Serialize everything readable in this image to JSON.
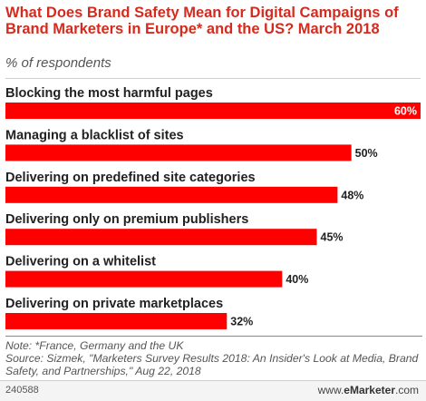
{
  "header": {
    "title": "What Does Brand Safety Mean for Digital Campaigns of Brand Marketers in Europe* and the US? March 2018",
    "subtitle": "% of respondents"
  },
  "chart_data": {
    "type": "bar",
    "orientation": "horizontal",
    "categories": [
      "Blocking the most harmful pages",
      "Managing a blacklist of sites",
      "Delivering on predefined site categories",
      "Delivering only on premium publishers",
      "Delivering on a whitelist",
      "Delivering on private marketplaces"
    ],
    "values": [
      60,
      50,
      48,
      45,
      40,
      32
    ],
    "value_labels": [
      "60%",
      "50%",
      "48%",
      "45%",
      "40%",
      "32%"
    ],
    "xlim": [
      0,
      60
    ],
    "grid": false,
    "bar_color": "#ff0000"
  },
  "footnote": {
    "note": "Note: *France, Germany and the UK",
    "source": "Source: Sizmek, \"Marketers Survey Results 2018: An Insider's Look at Media, Brand Safety, and Partnerships,\" Aug 22, 2018"
  },
  "footer": {
    "chart_id": "240588",
    "brand_prefix": "www.",
    "brand_name": "eMarketer",
    "brand_suffix": ".com"
  }
}
